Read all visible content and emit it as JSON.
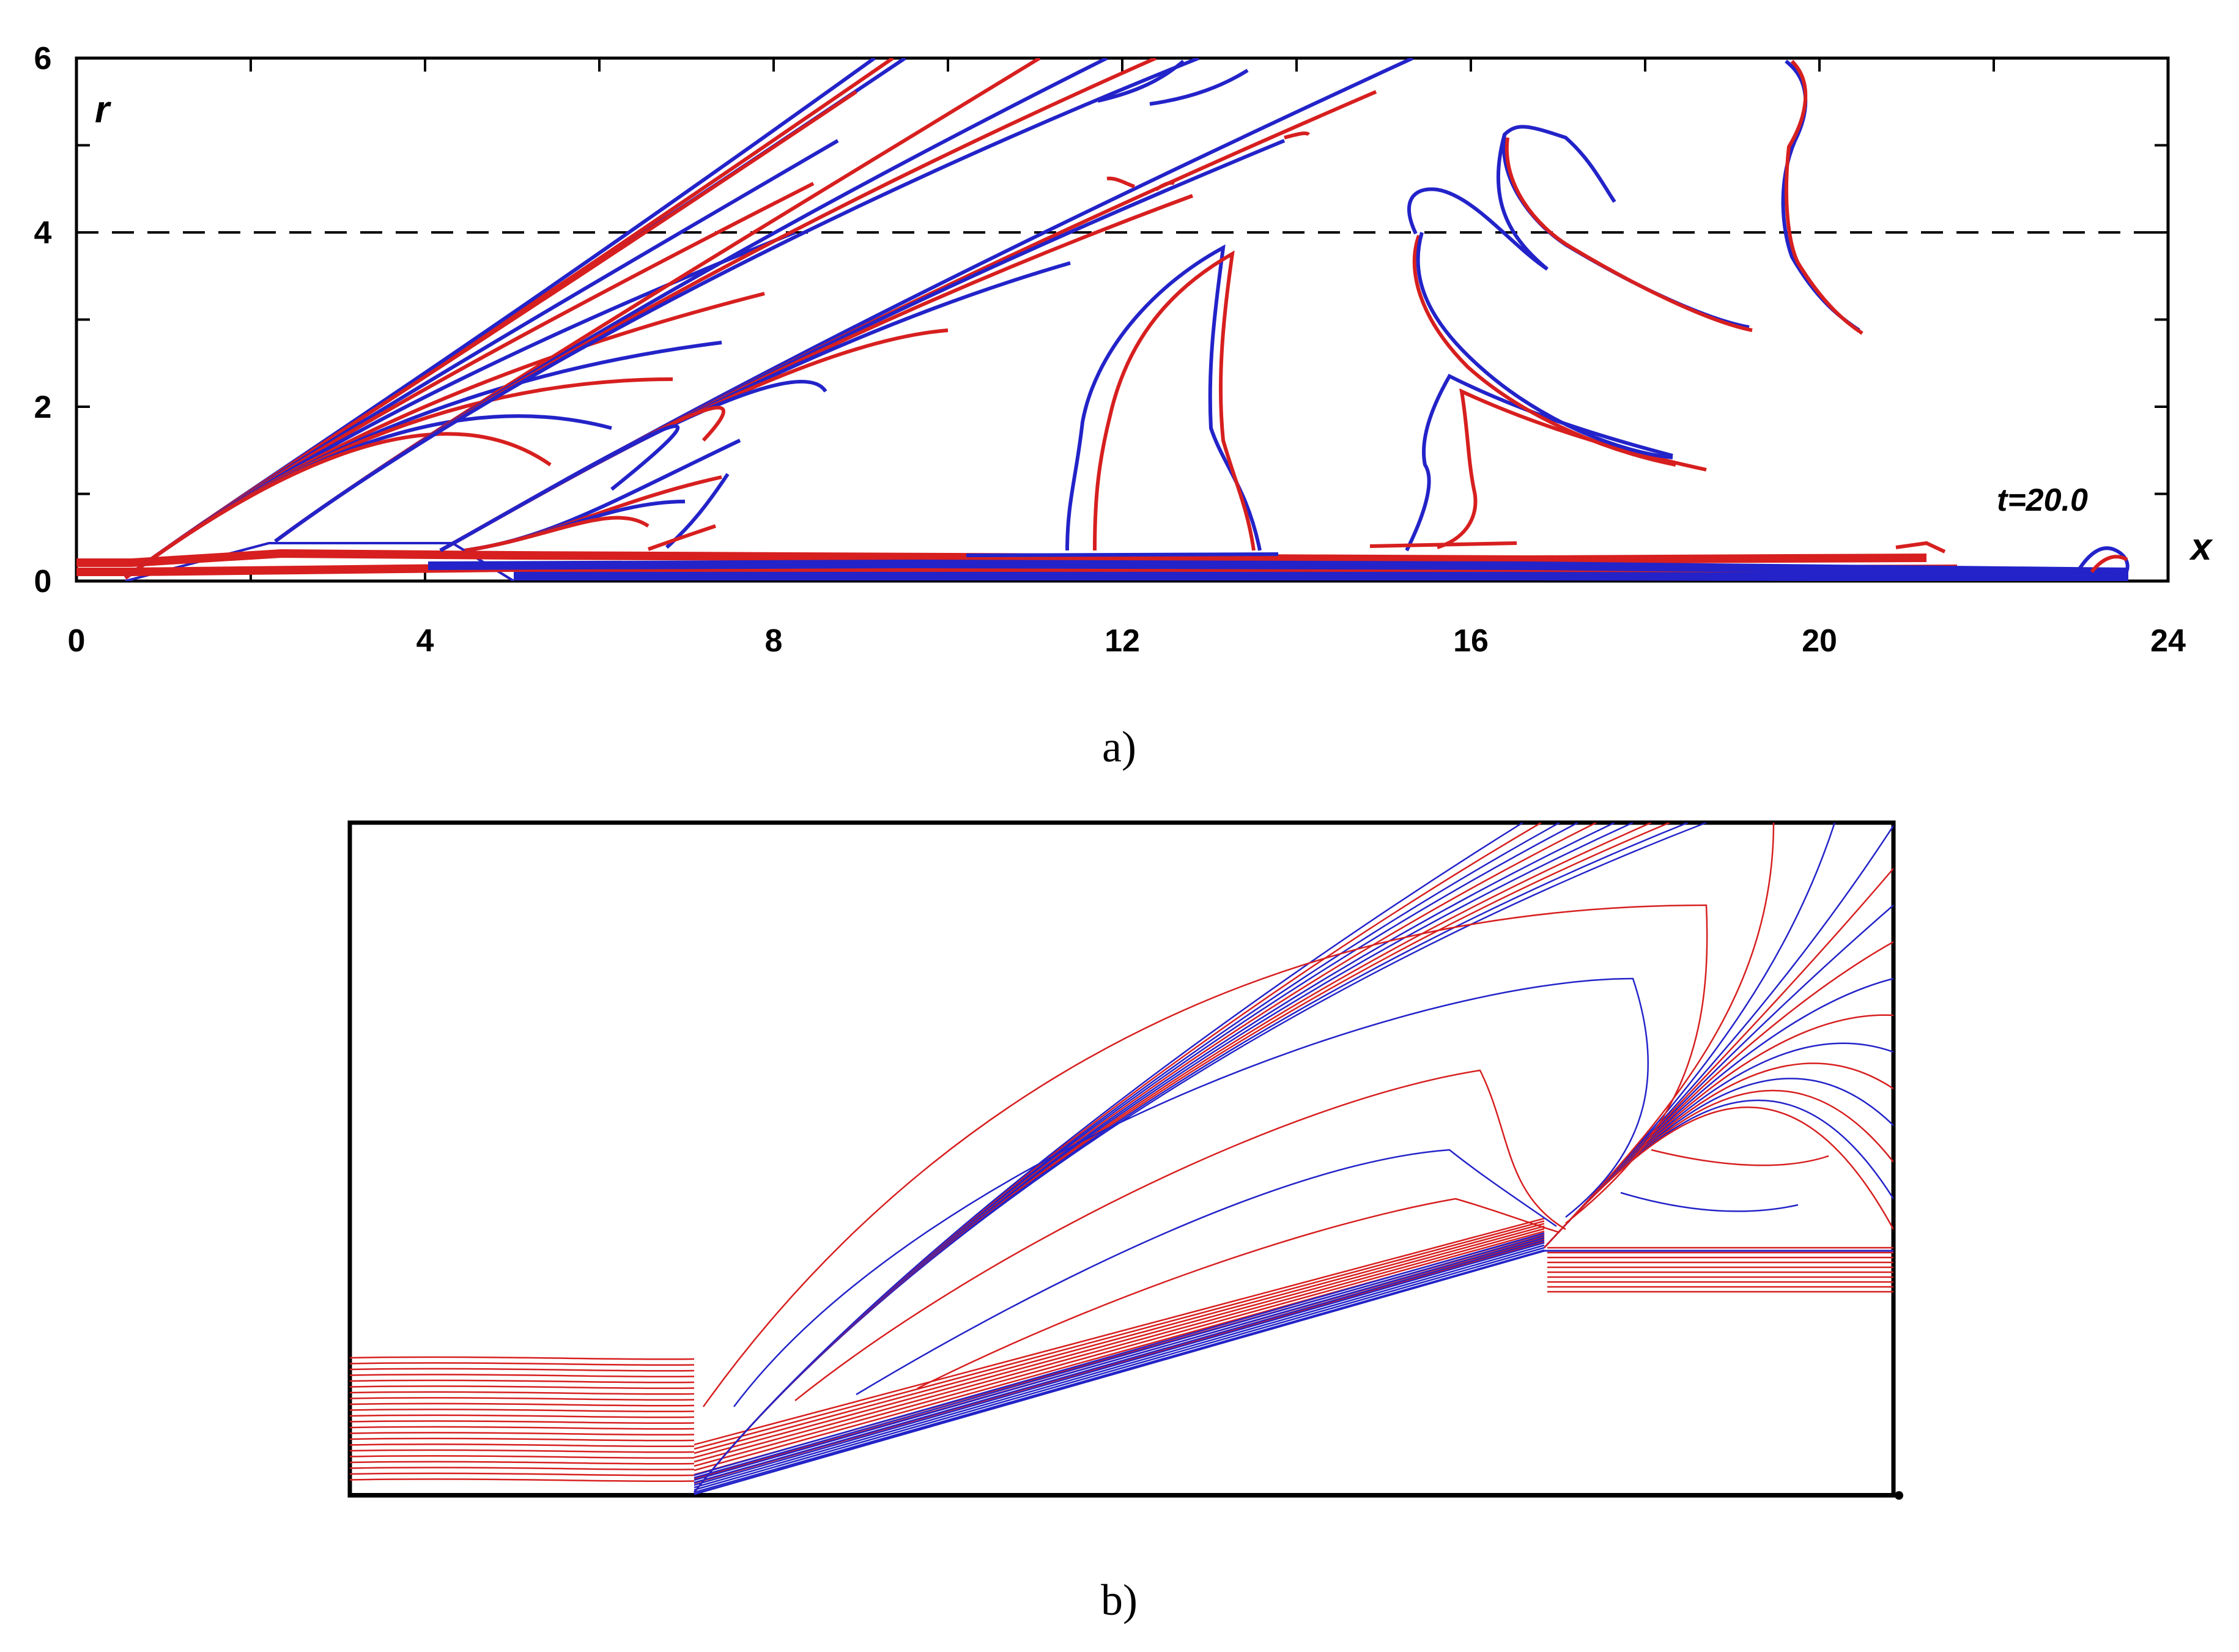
{
  "panel_a": {
    "x_axis_letter": "x",
    "r_axis_letter": "r",
    "time_label": "t=20.0",
    "x_ticks": [
      "0",
      "4",
      "8",
      "12",
      "16",
      "20",
      "24"
    ],
    "r_ticks": [
      "0",
      "2",
      "4",
      "6"
    ],
    "caption": "a)"
  },
  "panel_b": {
    "caption": "b)"
  },
  "colors": {
    "series_red": "#d71f1f",
    "series_blue": "#2323c9"
  }
}
